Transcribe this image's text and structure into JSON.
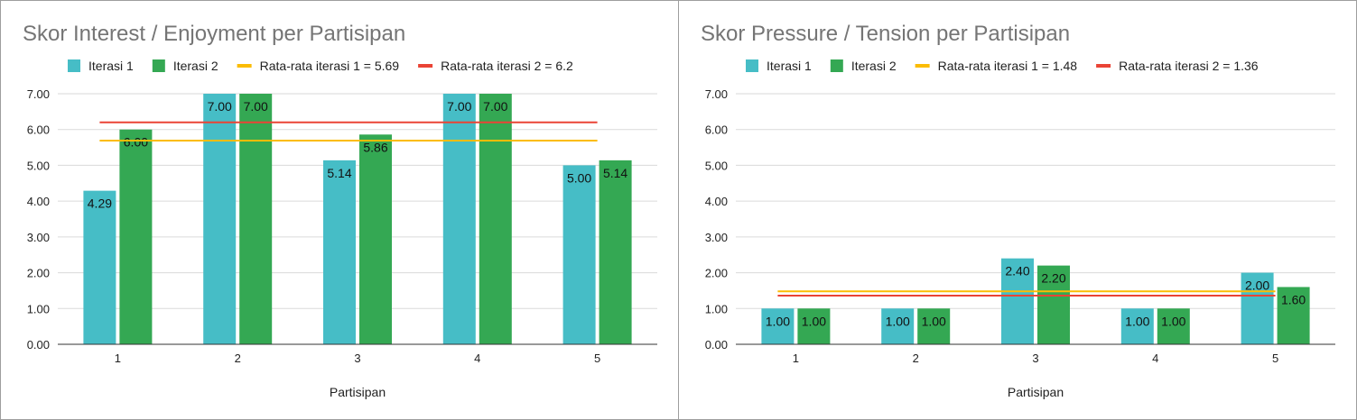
{
  "colors": {
    "iter1": "#46BDC6",
    "iter2": "#34A853",
    "avg1": "#FBBC04",
    "avg2": "#EA4335",
    "grid": "#dadada",
    "axis": "#333333"
  },
  "chart_data": [
    {
      "type": "bar",
      "title": "Skor Interest / Enjoyment per Partisipan",
      "xlabel": "Partisipan",
      "ylabel": "",
      "ylim": [
        0,
        7
      ],
      "yticks": [
        "0.00",
        "1.00",
        "2.00",
        "3.00",
        "4.00",
        "5.00",
        "6.00",
        "7.00"
      ],
      "categories": [
        "1",
        "2",
        "3",
        "4",
        "5"
      ],
      "series": [
        {
          "name": "Iterasi 1",
          "values": [
            4.29,
            7.0,
            5.14,
            7.0,
            5.0
          ],
          "labels": [
            "4.29",
            "7.00",
            "5.14",
            "7.00",
            "5.00"
          ]
        },
        {
          "name": "Iterasi 2",
          "values": [
            6.0,
            7.0,
            5.86,
            7.0,
            5.14
          ],
          "labels": [
            "6.00",
            "7.00",
            "5.86",
            "7.00",
            "5.14"
          ]
        }
      ],
      "reference_lines": [
        {
          "name": "Rata-rata iterasi 1 = 5.69",
          "value": 5.69
        },
        {
          "name": "Rata-rata iterasi 2 = 6.2",
          "value": 6.2
        }
      ],
      "grid": true,
      "legend": "top"
    },
    {
      "type": "bar",
      "title": "Skor Pressure / Tension per Partisipan",
      "xlabel": "Partisipan",
      "ylabel": "",
      "ylim": [
        0,
        7
      ],
      "yticks": [
        "0.00",
        "1.00",
        "2.00",
        "3.00",
        "4.00",
        "5.00",
        "6.00",
        "7.00"
      ],
      "categories": [
        "1",
        "2",
        "3",
        "4",
        "5"
      ],
      "series": [
        {
          "name": "Iterasi 1",
          "values": [
            1.0,
            1.0,
            2.4,
            1.0,
            2.0
          ],
          "labels": [
            "1.00",
            "1.00",
            "2.40",
            "1.00",
            "2.00"
          ]
        },
        {
          "name": "Iterasi 2",
          "values": [
            1.0,
            1.0,
            2.2,
            1.0,
            1.6
          ],
          "labels": [
            "1.00",
            "1.00",
            "2.20",
            "1.00",
            "1.60"
          ]
        }
      ],
      "reference_lines": [
        {
          "name": "Rata-rata iterasi 1 = 1.48",
          "value": 1.48
        },
        {
          "name": "Rata-rata iterasi 2 = 1.36",
          "value": 1.36
        }
      ],
      "grid": true,
      "legend": "top"
    }
  ]
}
